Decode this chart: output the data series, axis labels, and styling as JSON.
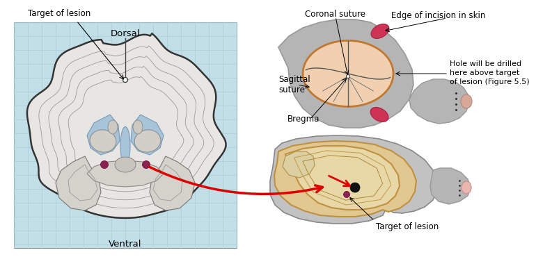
{
  "bg_color": "#ffffff",
  "grid_bg": "#c2dfe8",
  "grid_line_color": "#a8cfd8",
  "ventricle_color": "#a8c4d8",
  "lesion_color": "#8b2252",
  "red_color": "#dd0000",
  "brain_fill": "#e8e6e2",
  "brain_edge": "#333333",
  "gray_mid": "#d0cdc8",
  "rat_gray": "#b5b5b5",
  "rat_gray_dark": "#999999",
  "pink_ear": "#cc3355",
  "skull_fill": "#f0d0b0",
  "skull_edge": "#c07830",
  "sagittal_skull_fill": "#c8c8c8",
  "sagittal_brain_fill": "#e8d8a8",
  "sagittal_brain_edge": "#c09040",
  "labels": {
    "target_lesion_left": "Target of lesion",
    "dorsal": "Dorsal",
    "ventral": "Ventral",
    "coronal_suture": "Coronal suture",
    "sagittal_suture": "Sagittal\nsuture",
    "bregma": "Bregma",
    "edge_incision": "Edge of incision in skin",
    "hole_drilled": "Hole will be drilled\nhere above target\nof lesion (Figure 5.5)",
    "target_lesion_right": "Target of lesion"
  }
}
